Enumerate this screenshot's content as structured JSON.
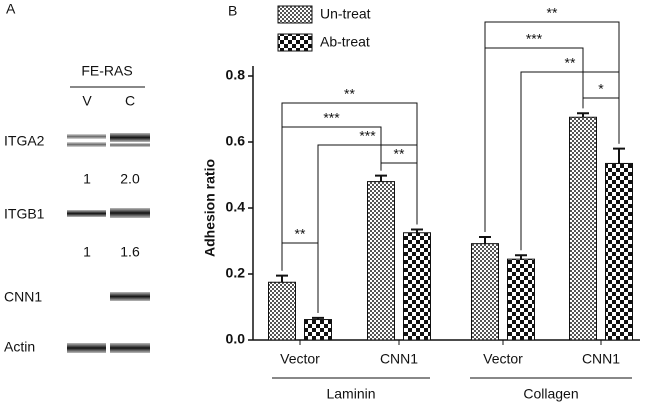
{
  "panel_a": {
    "label": "A",
    "group": "FE-RAS",
    "lanes": [
      "V",
      "C"
    ],
    "rows": [
      {
        "name": "ITGA2",
        "quant": [
          "1",
          "2.0"
        ]
      },
      {
        "name": "ITGB1",
        "quant": [
          "1",
          "1.6"
        ]
      },
      {
        "name": "CNN1"
      },
      {
        "name": "Actin"
      }
    ]
  },
  "chart_data": {
    "type": "bar",
    "panel_label": "B",
    "ylabel": "Adhesion ratio",
    "categories": [
      "Vector",
      "CNN1",
      "Vector",
      "CNN1"
    ],
    "groups": [
      "Laminin",
      "Collagen"
    ],
    "series": [
      {
        "name": "Un-treat",
        "color": "#555555",
        "values": [
          0.175,
          0.48,
          0.292,
          0.675
        ],
        "errors": [
          0.02,
          0.018,
          0.02,
          0.012
        ]
      },
      {
        "name": "Ab-treat",
        "color": "#111111",
        "values": [
          0.062,
          0.325,
          0.245,
          0.535
        ],
        "errors": [
          0.005,
          0.01,
          0.012,
          0.045
        ]
      }
    ],
    "ylim": [
      0,
      0.85
    ],
    "yticks": [
      {
        "value": 0,
        "label": "0.0"
      },
      0.2,
      0.4,
      0.6,
      0.8
    ],
    "annotations": [
      "**",
      "**",
      "***",
      "***",
      "**",
      "*",
      "**",
      "***",
      "**"
    ]
  }
}
